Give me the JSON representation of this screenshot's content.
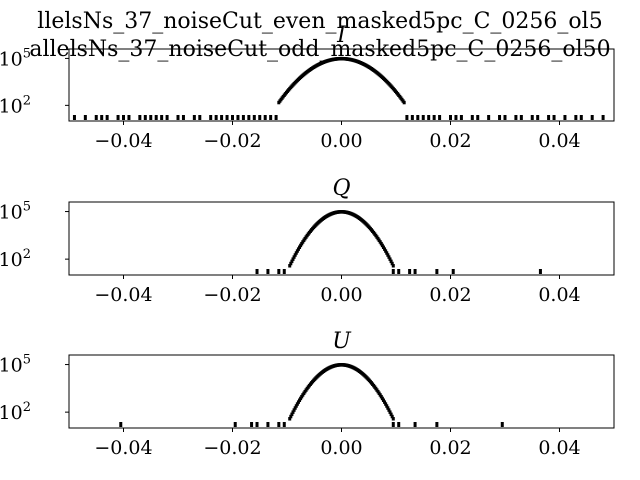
{
  "figure": {
    "title_lines": [
      "llelsNs_37_noiseCut_even_masked5pc_C_0256_ol5",
      "allelsNs_37_noiseCut_odd_masked5pc_C_0256_ol50"
    ]
  },
  "chart_data": [
    {
      "type": "histogram",
      "title": "I",
      "xlabel": "",
      "ylabel": "",
      "xlim": [
        -0.05,
        0.05
      ],
      "ylog": true,
      "ylim": [
        10,
        400000
      ],
      "x_ticks": [
        -0.04,
        -0.02,
        0.0,
        0.02,
        0.04
      ],
      "x_tick_labels": [
        "−0.04",
        "−0.02",
        "0.00",
        "0.02",
        "0.04"
      ],
      "y_ticks": [
        100,
        100000
      ],
      "y_tick_labels": [
        {
          "base": "10",
          "exp": "2"
        },
        {
          "base": "10",
          "exp": "5"
        }
      ],
      "gaussian": {
        "center": 0.0,
        "sigma": 0.0032,
        "peak": 100000,
        "extent": 0.0115
      },
      "outliers_x": [
        -0.049,
        -0.047,
        -0.045,
        -0.044,
        -0.043,
        -0.041,
        -0.04,
        -0.039,
        -0.037,
        -0.036,
        -0.035,
        -0.034,
        -0.033,
        -0.032,
        -0.03,
        -0.029,
        -0.027,
        -0.026,
        -0.024,
        -0.023,
        -0.022,
        -0.021,
        -0.02,
        -0.019,
        -0.018,
        -0.017,
        -0.016,
        -0.015,
        -0.014,
        -0.013,
        -0.012,
        0.012,
        0.013,
        0.014,
        0.015,
        0.016,
        0.017,
        0.018,
        0.02,
        0.021,
        0.022,
        0.024,
        0.025,
        0.027,
        0.029,
        0.03,
        0.032,
        0.033,
        0.035,
        0.036,
        0.038,
        0.039,
        0.041,
        0.043,
        0.044,
        0.046,
        0.048
      ]
    },
    {
      "type": "histogram",
      "title": "Q",
      "xlabel": "",
      "ylabel": "",
      "xlim": [
        -0.05,
        0.05
      ],
      "ylog": true,
      "ylim": [
        10,
        400000
      ],
      "x_ticks": [
        -0.04,
        -0.02,
        0.0,
        0.02,
        0.04
      ],
      "x_tick_labels": [
        "−0.04",
        "−0.02",
        "0.00",
        "0.02",
        "0.04"
      ],
      "y_ticks": [
        100,
        100000
      ],
      "y_tick_labels": [
        {
          "base": "10",
          "exp": "2"
        },
        {
          "base": "10",
          "exp": "5"
        }
      ],
      "gaussian": {
        "center": 0.0,
        "sigma": 0.0024,
        "peak": 100000,
        "extent": 0.0095
      },
      "outliers_x": [
        -0.0155,
        -0.0135,
        -0.0115,
        -0.0105,
        0.0095,
        0.0105,
        0.0125,
        0.0135,
        0.0175,
        0.0205,
        0.0365
      ]
    },
    {
      "type": "histogram",
      "title": "U",
      "xlabel": "",
      "ylabel": "",
      "xlim": [
        -0.05,
        0.05
      ],
      "ylog": true,
      "ylim": [
        10,
        400000
      ],
      "x_ticks": [
        -0.04,
        -0.02,
        0.0,
        0.02,
        0.04
      ],
      "x_tick_labels": [
        "−0.04",
        "−0.02",
        "0.00",
        "0.02",
        "0.04"
      ],
      "y_ticks": [
        100,
        100000
      ],
      "y_tick_labels": [
        {
          "base": "10",
          "exp": "2"
        },
        {
          "base": "10",
          "exp": "5"
        }
      ],
      "gaussian": {
        "center": 0.0,
        "sigma": 0.0024,
        "peak": 100000,
        "extent": 0.0095
      },
      "outliers_x": [
        -0.0405,
        -0.0195,
        -0.0165,
        -0.0155,
        -0.0135,
        -0.0115,
        -0.0105,
        0.0095,
        0.0105,
        0.0135,
        0.0175,
        0.0295
      ]
    }
  ]
}
